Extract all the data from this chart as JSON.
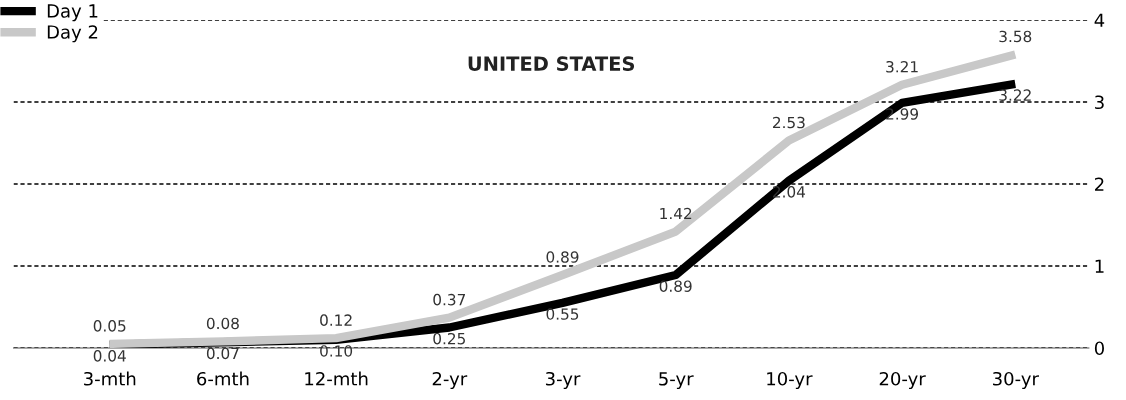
{
  "chart_data": {
    "type": "line",
    "title": "UNITED STATES",
    "categories": [
      "3-mth",
      "6-mth",
      "12-mth",
      "2-yr",
      "3-yr",
      "5-yr",
      "10-yr",
      "20-yr",
      "30-yr"
    ],
    "series": [
      {
        "name": "Day 1",
        "color": "#000000",
        "values": [
          0.04,
          0.07,
          0.1,
          0.25,
          0.55,
          0.89,
          2.04,
          2.99,
          3.22
        ],
        "value_labels": [
          "0.04",
          "0.07",
          "0.10",
          "0.25",
          "0.55",
          "0.89",
          "2.04",
          "2.99",
          "3.22"
        ]
      },
      {
        "name": "Day 2",
        "color": "#c8c8c8",
        "values": [
          0.05,
          0.08,
          0.12,
          0.37,
          0.89,
          1.42,
          2.53,
          3.21,
          3.58
        ],
        "value_labels": [
          "0.05",
          "0.08",
          "0.12",
          "0.37",
          "0.89",
          "1.42",
          "2.53",
          "3.21",
          "3.58"
        ]
      }
    ],
    "ylim": [
      0,
      4
    ],
    "yticks": [
      0,
      1,
      2,
      3,
      4
    ],
    "grid": "y",
    "legend": "top left",
    "marker": "none",
    "line_style": "solid"
  }
}
